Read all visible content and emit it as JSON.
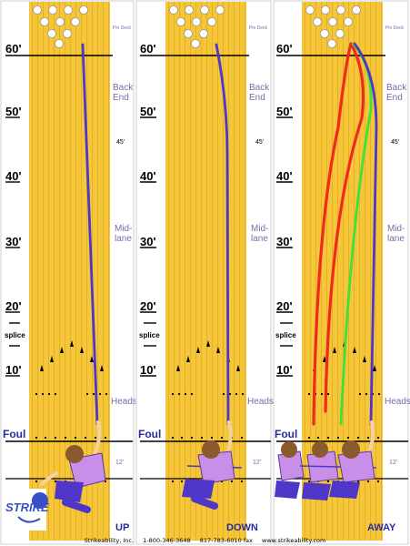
{
  "panels": [
    {
      "id": "up",
      "caption": "UP"
    },
    {
      "id": "down",
      "caption": "DOWN"
    },
    {
      "id": "away",
      "caption": "AWAY"
    }
  ],
  "distances": {
    "d60": "60'",
    "d50": "50'",
    "d40": "40'",
    "d30": "30'",
    "d20": "20'",
    "d10": "10'",
    "splice": "splice",
    "foul": "Foul"
  },
  "zones": {
    "pin_deck": "Pin Deck",
    "back": "Back",
    "end": "End",
    "mark45": "45'",
    "mid": "Mid-",
    "lane": "lane",
    "heads": "Heads",
    "mark12": "12'"
  },
  "logo": {
    "text": "STRIKE"
  },
  "footer": {
    "company": "Strikeability, Inc.",
    "phone": "1-800-346-3648",
    "fax": "817-783-6010 fax",
    "site": "www.strikeability.com"
  },
  "colors": {
    "lane": "#f5c53a",
    "board_line": "#e8b320",
    "ball_path": "#4d36c8",
    "path_red": "#f02a1e",
    "path_green": "#3ce33a",
    "bowler_shirt": "#c98ee8",
    "bowler_pants": "#4d36c8"
  }
}
